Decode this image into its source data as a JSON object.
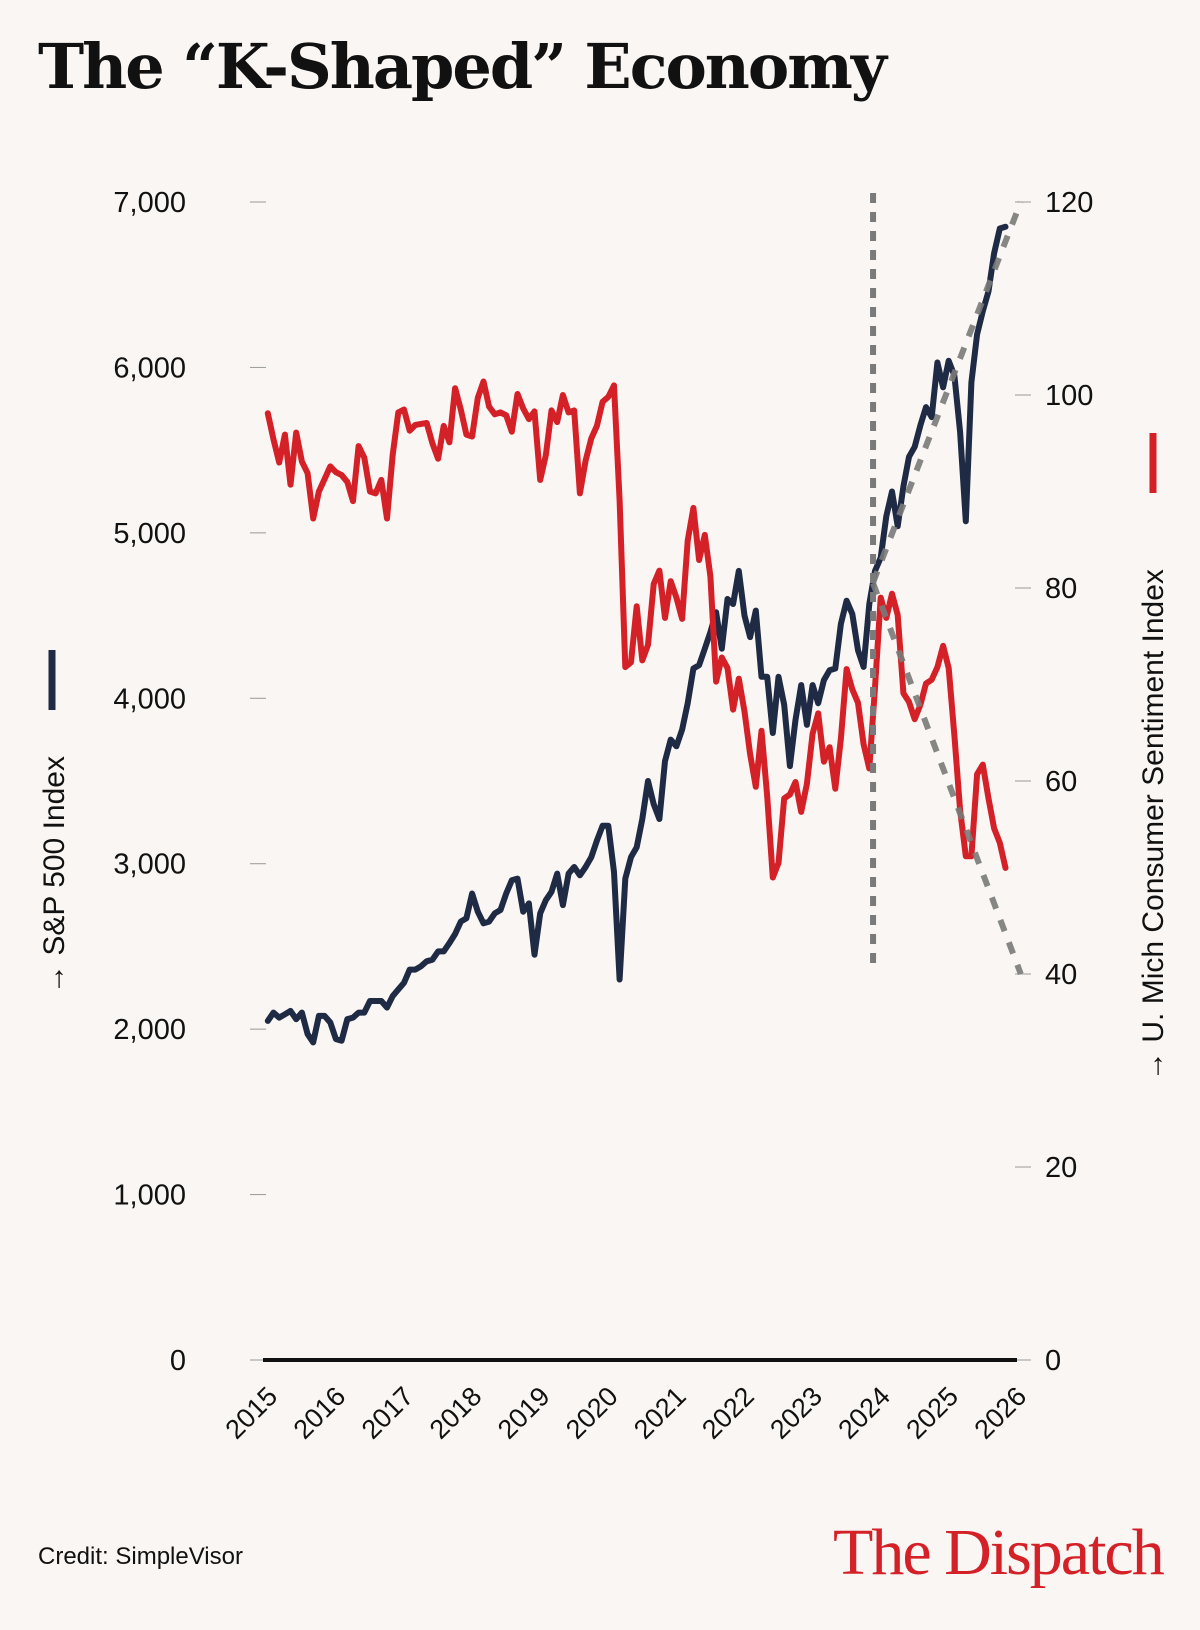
{
  "title": "The “K-Shaped” Economy",
  "credit": "Credit: SimpleVisor",
  "logo_text": "The Dispatch",
  "colors": {
    "background": "#f9f6f3",
    "sp500": "#1f2a44",
    "sentiment": "#d42027",
    "trend": "#7a7a7a",
    "axis": "#111111"
  },
  "chart_data": {
    "type": "line",
    "title": "The “K-Shaped” Economy",
    "x_ticks": [
      "2015",
      "2016",
      "2017",
      "2018",
      "2019",
      "2020",
      "2021",
      "2022",
      "2023",
      "2024",
      "2025",
      "2026"
    ],
    "xlim": [
      2015,
      2026
    ],
    "left_axis": {
      "label": "→ S&P 500 Index",
      "ticks": [
        "0",
        "1,000",
        "2,000",
        "3,000",
        "4,000",
        "5,000",
        "6,000",
        "7,000"
      ],
      "tick_values": [
        0,
        1000,
        2000,
        3000,
        4000,
        5000,
        6000,
        7000
      ],
      "ylim": [
        0,
        7000
      ]
    },
    "right_axis": {
      "label": "→ U. Mich Consumer Sentiment Index",
      "ticks": [
        "0",
        "20",
        "40",
        "60",
        "80",
        "100",
        "120"
      ],
      "tick_values": [
        0,
        20,
        40,
        60,
        80,
        100,
        120
      ],
      "ylim": [
        0,
        120
      ]
    },
    "grid": false,
    "legend": "axis-labels",
    "start": "2015-01",
    "frequency": "monthly",
    "series": [
      {
        "name": "S&P 500 Index",
        "axis": "left",
        "values": [
          2050,
          2100,
          2070,
          2090,
          2110,
          2060,
          2100,
          1970,
          1920,
          2080,
          2080,
          2040,
          1940,
          1930,
          2060,
          2070,
          2100,
          2100,
          2170,
          2170,
          2170,
          2130,
          2200,
          2240,
          2280,
          2360,
          2360,
          2380,
          2410,
          2420,
          2470,
          2470,
          2520,
          2575,
          2650,
          2670,
          2820,
          2710,
          2640,
          2650,
          2700,
          2720,
          2820,
          2900,
          2910,
          2710,
          2760,
          2450,
          2700,
          2780,
          2830,
          2940,
          2750,
          2940,
          2980,
          2930,
          2980,
          3040,
          3140,
          3230,
          3230,
          2950,
          2300,
          2910,
          3040,
          3100,
          3270,
          3500,
          3360,
          3270,
          3620,
          3750,
          3710,
          3810,
          3970,
          4180,
          4200,
          4300,
          4400,
          4520,
          4300,
          4600,
          4570,
          4770,
          4500,
          4370,
          4530,
          4130,
          4130,
          3790,
          4130,
          3960,
          3590,
          3870,
          4080,
          3840,
          4080,
          3970,
          4110,
          4170,
          4180,
          4450,
          4590,
          4510,
          4290,
          4190,
          4570,
          4770,
          4850,
          5100,
          5250,
          5040,
          5280,
          5460,
          5520,
          5650,
          5760,
          5700,
          6030,
          5880,
          6040,
          5950,
          5610,
          5070,
          5910,
          6200,
          6340,
          6460,
          6690,
          6840,
          6850
        ]
      },
      {
        "name": "U. Mich Consumer Sentiment Index",
        "axis": "right",
        "values": [
          98.1,
          95.4,
          93,
          95.9,
          90.7,
          96.1,
          93.1,
          91.9,
          87.2,
          90,
          91.3,
          92.6,
          92,
          91.7,
          91,
          89,
          94.7,
          93.5,
          90,
          89.8,
          91.2,
          87.2,
          93.8,
          98.2,
          98.5,
          96.3,
          96.9,
          97,
          97.1,
          95,
          93.4,
          96.8,
          95.1,
          100.7,
          98.5,
          95.9,
          95.7,
          99.7,
          101.4,
          98.8,
          98,
          98.2,
          97.9,
          96.2,
          100.1,
          98.6,
          97.5,
          98.3,
          91.2,
          93.8,
          98.4,
          97.2,
          100,
          98.2,
          98.4,
          89.8,
          93.2,
          95.5,
          96.8,
          99.3,
          99.8,
          101,
          89.1,
          71.8,
          72.3,
          78.1,
          72.5,
          74.1,
          80.4,
          81.8,
          76.9,
          80.7,
          79,
          76.8,
          84.9,
          88.3,
          82.9,
          85.5,
          81.2,
          70.3,
          72.8,
          71.7,
          67.4,
          70.6,
          67.2,
          62.8,
          59.4,
          65.2,
          58.4,
          50,
          51.5,
          58.2,
          58.6,
          59.9,
          56.8,
          59.7,
          64.9,
          67,
          62,
          63.5,
          59.2,
          64.4,
          71.6,
          69.5,
          68.1,
          63.8,
          61.3,
          69.7,
          79,
          76.9,
          79.4,
          77.2,
          69.1,
          68.2,
          66.4,
          67.9,
          70.1,
          70.5,
          71.8,
          74,
          71.7,
          64.7,
          57,
          52.2,
          52.2,
          60.7,
          61.7,
          58.2,
          55.1,
          53.6,
          51
        ]
      }
    ],
    "annotations": {
      "vertical_marker_x": 2023.93,
      "trend_up": {
        "axis": "left",
        "from": [
          2023.93,
          4700
        ],
        "to": [
          2026.1,
          7000
        ]
      },
      "trend_down": {
        "axis": "right",
        "from": [
          2023.93,
          80.5
        ],
        "to": [
          2026.1,
          40
        ]
      }
    }
  }
}
